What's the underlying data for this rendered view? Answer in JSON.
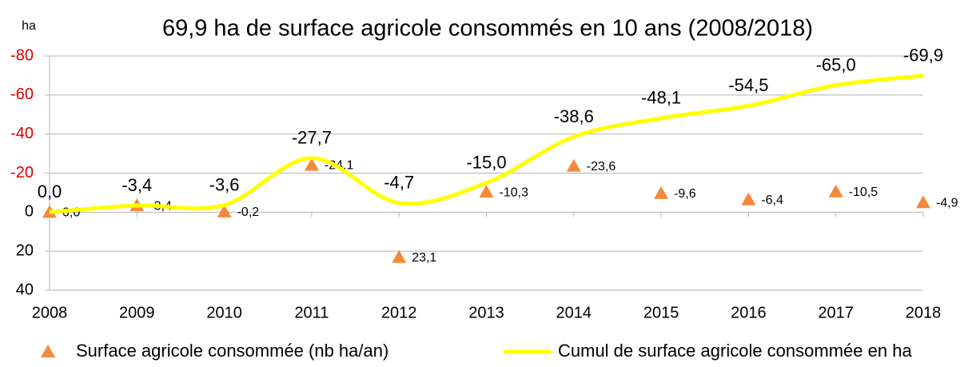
{
  "chart_data": {
    "type": "line",
    "title": "69,9 ha de surface agricole consommés en 10 ans (2008/2018)",
    "y_axis_label": "ha",
    "categories": [
      "2008",
      "2009",
      "2010",
      "2011",
      "2012",
      "2013",
      "2014",
      "2015",
      "2016",
      "2017",
      "2018"
    ],
    "ylim": [
      40,
      -80
    ],
    "yticks": [
      -80,
      -60,
      -40,
      -20,
      0,
      20,
      40
    ],
    "negative_tick_color": "#e00000",
    "grid": true,
    "legend": "bottom",
    "series": [
      {
        "name": "Surface agricole consommée (nb ha/an)",
        "type": "scatter",
        "marker": "triangle",
        "color": "#f5893a",
        "values": [
          0.0,
          -3.4,
          -0.2,
          -24.1,
          23.1,
          -10.3,
          -23.6,
          -9.6,
          -6.4,
          -10.5,
          -4.9
        ],
        "value_labels": [
          "0,0",
          "-3,4",
          "-0,2",
          "-24,1",
          "23,1",
          "-10,3",
          "-23,6",
          "-9,6",
          "-6,4",
          "-10,5",
          "-4,9"
        ]
      },
      {
        "name": "Cumul de surface agricole consommée en ha",
        "type": "line",
        "smooth": true,
        "color": "#ffff00",
        "values": [
          0.0,
          -3.4,
          -3.6,
          -27.7,
          -4.7,
          -15.0,
          -38.6,
          -48.1,
          -54.5,
          -65.0,
          -69.9
        ],
        "value_labels": [
          "0,0",
          "-3,4",
          "-3,6",
          "-27,7",
          "-4,7",
          "-15,0",
          "-38,6",
          "-48,1",
          "-54,5",
          "-65,0",
          "-69,9"
        ]
      }
    ]
  }
}
